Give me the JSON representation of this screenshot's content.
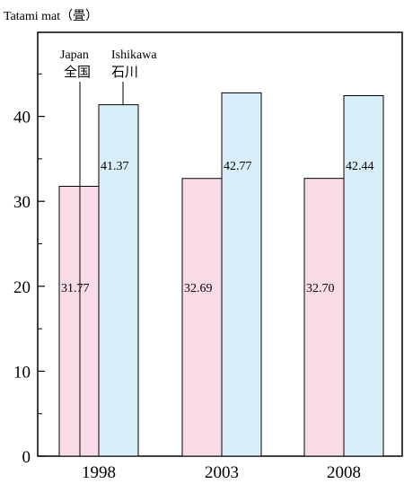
{
  "chart_data": {
    "type": "bar",
    "unit_label": "Tatami mat（畳）",
    "categories": [
      "1998",
      "2003",
      "2008"
    ],
    "series": [
      {
        "name_en": "Japan",
        "name_ja": "全国",
        "values": [
          31.77,
          32.69,
          32.7
        ],
        "labels": [
          "31.77",
          "32.69",
          "32.70"
        ],
        "color": "#f9dbe8"
      },
      {
        "name_en": "Ishikawa",
        "name_ja": "石川",
        "values": [
          41.37,
          42.77,
          42.44
        ],
        "labels": [
          "41.37",
          "42.77",
          "42.44"
        ],
        "color": "#d8eef9"
      }
    ],
    "ylim": [
      0,
      50
    ],
    "yticks": [
      "0",
      "10",
      "20",
      "30",
      "40"
    ],
    "grid": false
  }
}
